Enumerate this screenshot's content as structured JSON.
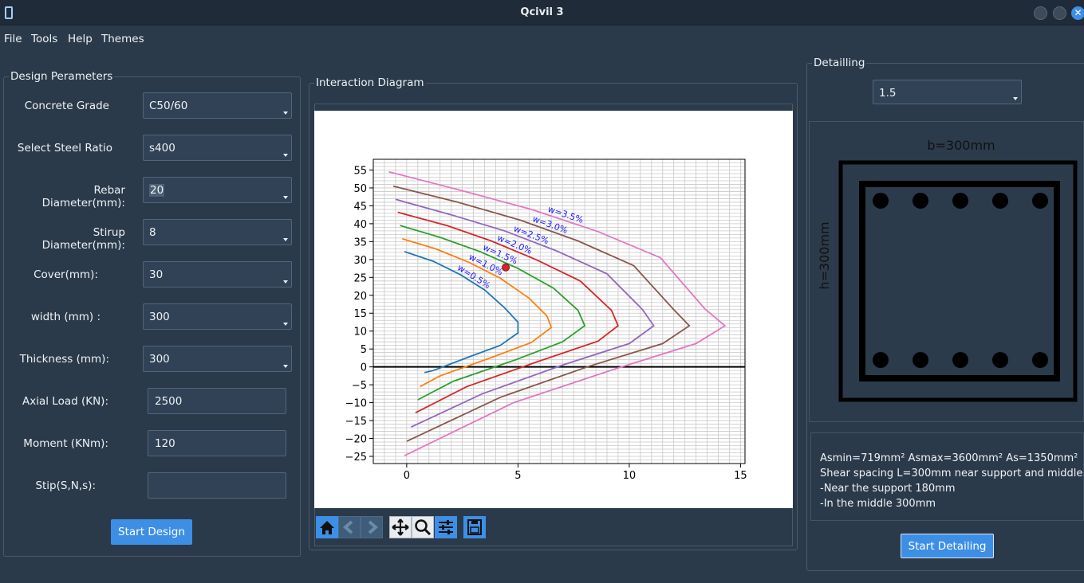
{
  "window": {
    "title": "Qcivil 3"
  },
  "menu": {
    "file": "File",
    "tools": "Tools",
    "help": "Help",
    "themes": "Themes"
  },
  "design": {
    "title": "Design Perameters",
    "concrete_grade_label": "Concrete Grade",
    "concrete_grade": "C50/60",
    "steel_ratio_label": "Select Steel Ratio",
    "steel_ratio": "s400",
    "rebar_label": "Rebar Diameter(mm):",
    "rebar": "20",
    "stirrup_label": "Stirup Diameter(mm):",
    "stirrup": "8",
    "cover_label": "Cover(mm):",
    "cover": "30",
    "width_label": "width (mm) :",
    "width": "300",
    "thickness_label": "Thickness (mm):",
    "thickness": "300",
    "axial_label": "Axial Load (KN):",
    "axial": "2500",
    "moment_label": "Moment (KNm):",
    "moment": "120",
    "stip_label": "Stip(S,N,s):",
    "stip": "",
    "start_design": "Start Design"
  },
  "interaction": {
    "title": "Interaction Diagram",
    "toolbar": [
      "home-icon",
      "back-icon",
      "forward-icon",
      "pan-icon",
      "zoom-icon",
      "configure-icon",
      "save-icon"
    ]
  },
  "chart_data": {
    "type": "line",
    "xlim": [
      -1.5,
      15.2
    ],
    "ylim": [
      -27,
      58
    ],
    "x_ticks": [
      0,
      5,
      10,
      15
    ],
    "y_ticks": [
      55,
      50,
      45,
      40,
      35,
      30,
      25,
      20,
      15,
      10,
      5,
      0,
      -5,
      -10,
      -15,
      -20,
      -25
    ],
    "grid": true,
    "series": [
      {
        "name": "w=0.5%",
        "color": "#1f77b4",
        "points": [
          [
            -0.1,
            32.2
          ],
          [
            1.2,
            29.5
          ],
          [
            2.4,
            25.8
          ],
          [
            3.5,
            21.5
          ],
          [
            4.4,
            16.5
          ],
          [
            5.0,
            12.5
          ],
          [
            5.0,
            9.5
          ],
          [
            4.2,
            6.0
          ],
          [
            2.8,
            2.8
          ],
          [
            1.2,
            -1.0
          ],
          [
            0.8,
            -1.6
          ]
        ]
      },
      {
        "name": "w=1.0%",
        "color": "#ff7f0e",
        "points": [
          [
            -0.2,
            35.8
          ],
          [
            1.3,
            33.0
          ],
          [
            2.8,
            29.2
          ],
          [
            4.2,
            24.8
          ],
          [
            5.5,
            19.2
          ],
          [
            6.3,
            14.2
          ],
          [
            6.5,
            11.0
          ],
          [
            5.6,
            6.8
          ],
          [
            3.8,
            2.6
          ],
          [
            1.5,
            -2.5
          ],
          [
            0.6,
            -5.5
          ]
        ]
      },
      {
        "name": "w=1.5%",
        "color": "#2ca02c",
        "points": [
          [
            -0.3,
            39.5
          ],
          [
            1.5,
            36.2
          ],
          [
            3.3,
            32.2
          ],
          [
            5.0,
            27.5
          ],
          [
            6.6,
            22.0
          ],
          [
            7.7,
            15.8
          ],
          [
            8.0,
            11.5
          ],
          [
            7.0,
            7.0
          ],
          [
            4.9,
            2.0
          ],
          [
            2.1,
            -4.0
          ],
          [
            0.5,
            -9.2
          ]
        ]
      },
      {
        "name": "w=2.0%",
        "color": "#d62728",
        "points": [
          [
            -0.4,
            43.2
          ],
          [
            1.8,
            39.5
          ],
          [
            3.8,
            35.2
          ],
          [
            5.8,
            30.0
          ],
          [
            7.8,
            24.0
          ],
          [
            9.2,
            15.8
          ],
          [
            9.5,
            11.5
          ],
          [
            8.6,
            7.2
          ],
          [
            5.9,
            1.5
          ],
          [
            2.7,
            -5.5
          ],
          [
            0.4,
            -12.8
          ]
        ]
      },
      {
        "name": "w=2.5%",
        "color": "#9467bd",
        "points": [
          [
            -0.5,
            46.8
          ],
          [
            2.0,
            42.5
          ],
          [
            4.4,
            38.0
          ],
          [
            6.7,
            32.5
          ],
          [
            9.0,
            26.0
          ],
          [
            10.6,
            16.0
          ],
          [
            11.1,
            11.5
          ],
          [
            10.0,
            6.5
          ],
          [
            7.0,
            0.5
          ],
          [
            3.4,
            -7.5
          ],
          [
            0.2,
            -16.8
          ]
        ]
      },
      {
        "name": "w=3.0%",
        "color": "#8c564b",
        "points": [
          [
            -0.6,
            50.5
          ],
          [
            2.3,
            46.0
          ],
          [
            5.1,
            41.0
          ],
          [
            7.7,
            35.2
          ],
          [
            10.2,
            28.3
          ],
          [
            12.0,
            16.0
          ],
          [
            12.7,
            11.5
          ],
          [
            11.5,
            6.5
          ],
          [
            8.2,
            0.2
          ],
          [
            4.2,
            -8.5
          ],
          [
            0.0,
            -20.8
          ]
        ]
      },
      {
        "name": "w=3.5%",
        "color": "#e377c2",
        "points": [
          [
            -0.8,
            54.5
          ],
          [
            2.5,
            49.2
          ],
          [
            5.6,
            44.0
          ],
          [
            8.6,
            37.8
          ],
          [
            11.4,
            30.5
          ],
          [
            13.4,
            16.2
          ],
          [
            14.3,
            11.5
          ],
          [
            13.0,
            6.5
          ],
          [
            9.4,
            -0.5
          ],
          [
            4.8,
            -10.0
          ],
          [
            -0.1,
            -24.8
          ]
        ]
      }
    ],
    "point": {
      "x": 4.45,
      "y": 27.8,
      "color": "#d62728"
    }
  },
  "detailing": {
    "title": "Detailling",
    "ratio": "1.5",
    "b_label": "b=300mm",
    "h_label": "h=300mm",
    "result_line1": "Asmin=719mm² Asmax=3600mm² As=1350mm²",
    "result_line2": "Shear spacing L=300mm near support and middle",
    "result_line3": " -Near the support 180mm",
    "result_line4": " -In the middle 300mm",
    "start_detailing": "Start Detailing"
  }
}
